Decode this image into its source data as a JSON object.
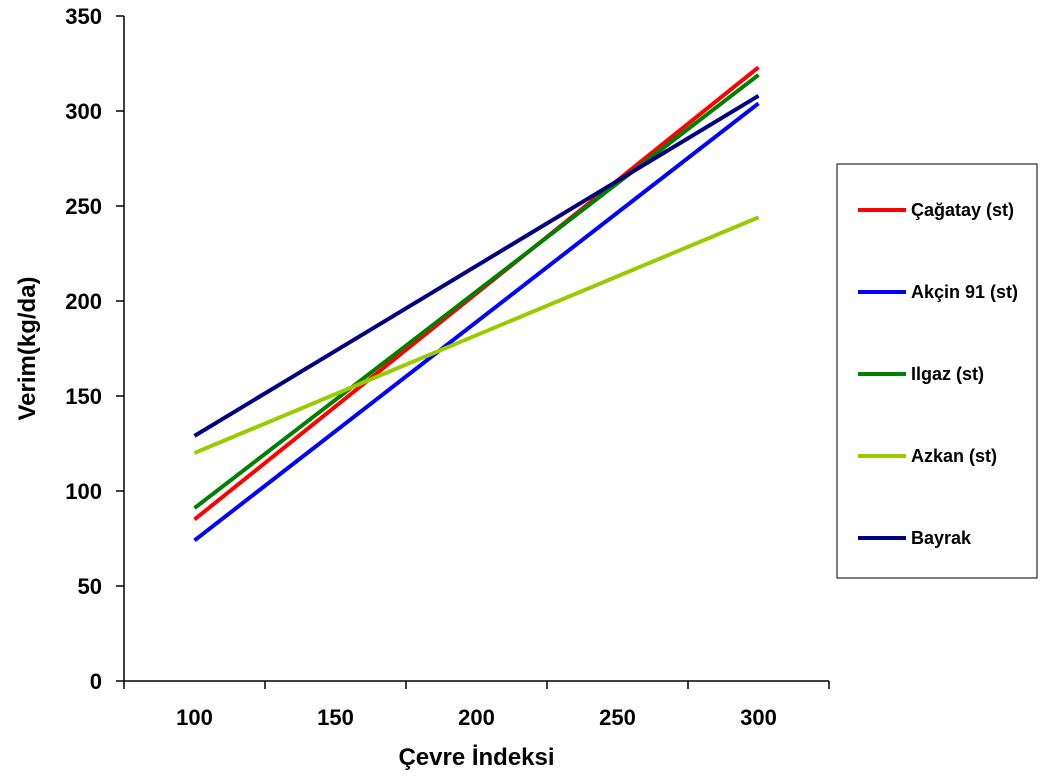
{
  "chart_data": {
    "type": "line",
    "title": "",
    "xlabel": "Çevre İndeksi",
    "ylabel": "Verim(kg/da)",
    "xlim": [
      75,
      325
    ],
    "ylim": [
      0,
      350
    ],
    "xticks": [
      100,
      150,
      200,
      250,
      300
    ],
    "yticks": [
      0,
      50,
      100,
      150,
      200,
      250,
      300,
      350
    ],
    "grid": false,
    "legend_position": "right",
    "series": [
      {
        "name": "Çağatay (st)",
        "color": "#ff0000",
        "x": [
          100,
          300
        ],
        "y": [
          85,
          323
        ]
      },
      {
        "name": "Akçin 91 (st)",
        "color": "#0000ff",
        "x": [
          100,
          300
        ],
        "y": [
          74,
          304
        ]
      },
      {
        "name": "Ilgaz (st)",
        "color": "#008000",
        "x": [
          100,
          300
        ],
        "y": [
          91,
          319
        ]
      },
      {
        "name": "Azkan (st)",
        "color": "#99cc00",
        "x": [
          100,
          300
        ],
        "y": [
          120,
          244
        ]
      },
      {
        "name": "Bayrak",
        "color": "#000080",
        "x": [
          100,
          300
        ],
        "y": [
          129,
          308
        ]
      }
    ]
  }
}
